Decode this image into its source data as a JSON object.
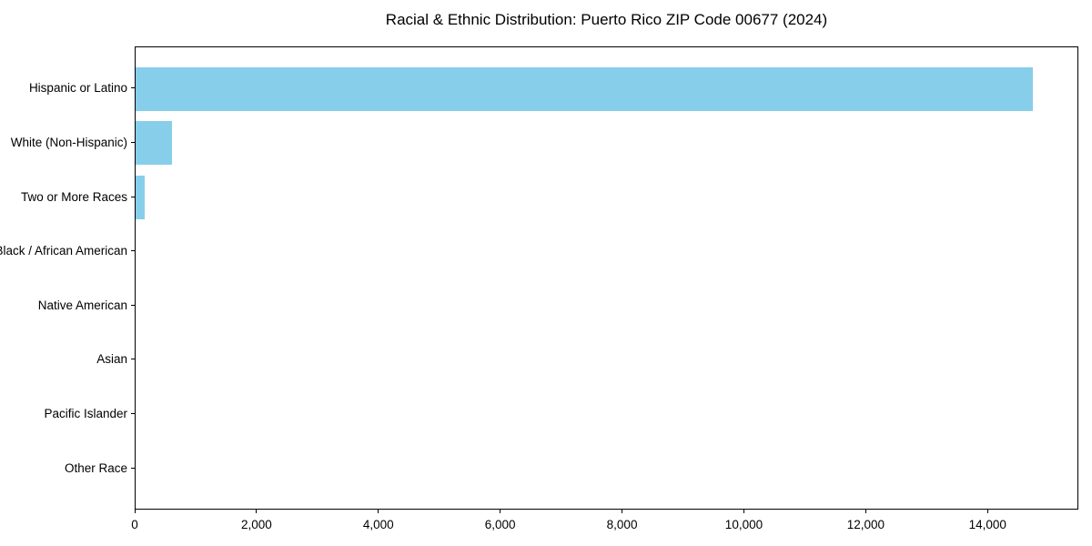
{
  "chart_data": {
    "type": "bar",
    "orientation": "horizontal",
    "title": "Racial & Ethnic Distribution: Puerto Rico ZIP Code 00677 (2024)",
    "categories": [
      "Hispanic or Latino",
      "White (Non-Hispanic)",
      "Two or More Races",
      "Black / African American",
      "Native American",
      "Asian",
      "Pacific Islander",
      "Other Race"
    ],
    "values": [
      14750,
      600,
      150,
      0,
      0,
      0,
      0,
      0
    ],
    "xlabel": "",
    "ylabel": "",
    "xlim": [
      0,
      15490
    ],
    "xticks": [
      0,
      2000,
      4000,
      6000,
      8000,
      10000,
      12000,
      14000
    ],
    "xtick_labels": [
      "0",
      "2,000",
      "4,000",
      "6,000",
      "8,000",
      "10,000",
      "12,000",
      "14,000"
    ],
    "grid": false,
    "legend": null,
    "bar_color": "#87CEEB",
    "axis_color": "#000000",
    "background_color": "#FFFFFF"
  }
}
